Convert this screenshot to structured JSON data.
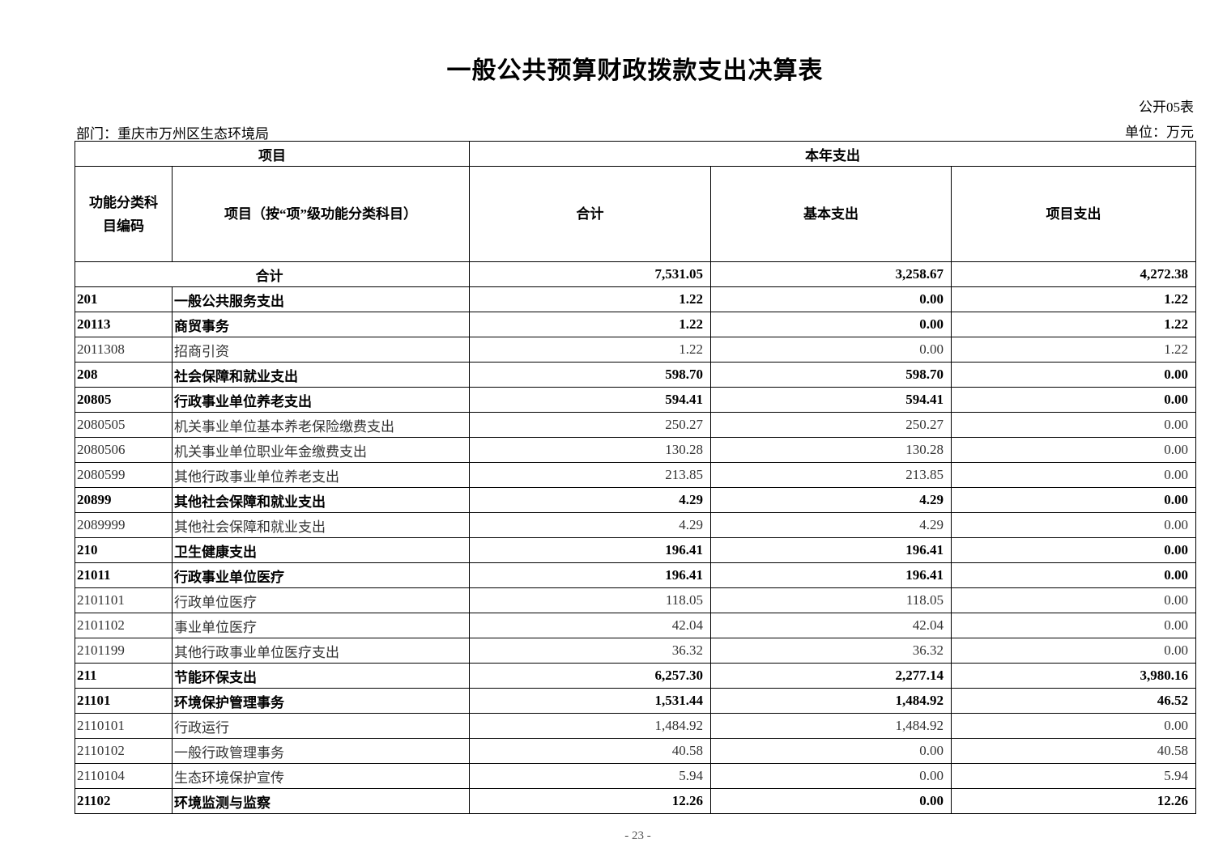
{
  "title": "一般公共预算财政拨款支出决算表",
  "table_no": "公开05表",
  "department": "部门：重庆市万州区生态环境局",
  "unit": "单位：万元",
  "headers": {
    "project": "项目",
    "current_year": "本年支出",
    "code": "功能分类科目编码",
    "name": "项目（按“项”级功能分类科目）",
    "total": "合计",
    "basic": "基本支出",
    "project_exp": "项目支出"
  },
  "total_row": {
    "label": "合计",
    "total": "7,531.05",
    "basic": "3,258.67",
    "project": "4,272.38"
  },
  "rows": [
    {
      "code": "201",
      "name": "一般公共服务支出",
      "total": "1.22",
      "basic": "0.00",
      "project": "1.22"
    },
    {
      "code": "20113",
      "name": "商贸事务",
      "total": "1.22",
      "basic": "0.00",
      "project": "1.22"
    },
    {
      "code": "2011308",
      "name": "招商引资",
      "total": "1.22",
      "basic": "0.00",
      "project": "1.22"
    },
    {
      "code": "208",
      "name": "社会保障和就业支出",
      "total": "598.70",
      "basic": "598.70",
      "project": "0.00"
    },
    {
      "code": "20805",
      "name": "行政事业单位养老支出",
      "total": "594.41",
      "basic": "594.41",
      "project": "0.00"
    },
    {
      "code": "2080505",
      "name": "机关事业单位基本养老保险缴费支出",
      "total": "250.27",
      "basic": "250.27",
      "project": "0.00"
    },
    {
      "code": "2080506",
      "name": "机关事业单位职业年金缴费支出",
      "total": "130.28",
      "basic": "130.28",
      "project": "0.00"
    },
    {
      "code": "2080599",
      "name": "其他行政事业单位养老支出",
      "total": "213.85",
      "basic": "213.85",
      "project": "0.00"
    },
    {
      "code": "20899",
      "name": "其他社会保障和就业支出",
      "total": "4.29",
      "basic": "4.29",
      "project": "0.00"
    },
    {
      "code": "2089999",
      "name": "其他社会保障和就业支出",
      "total": "4.29",
      "basic": "4.29",
      "project": "0.00"
    },
    {
      "code": "210",
      "name": "卫生健康支出",
      "total": "196.41",
      "basic": "196.41",
      "project": "0.00"
    },
    {
      "code": "21011",
      "name": "行政事业单位医疗",
      "total": "196.41",
      "basic": "196.41",
      "project": "0.00"
    },
    {
      "code": "2101101",
      "name": "行政单位医疗",
      "total": "118.05",
      "basic": "118.05",
      "project": "0.00"
    },
    {
      "code": "2101102",
      "name": "事业单位医疗",
      "total": "42.04",
      "basic": "42.04",
      "project": "0.00"
    },
    {
      "code": "2101199",
      "name": "其他行政事业单位医疗支出",
      "total": "36.32",
      "basic": "36.32",
      "project": "0.00"
    },
    {
      "code": "211",
      "name": "节能环保支出",
      "total": "6,257.30",
      "basic": "2,277.14",
      "project": "3,980.16"
    },
    {
      "code": "21101",
      "name": "环境保护管理事务",
      "total": "1,531.44",
      "basic": "1,484.92",
      "project": "46.52"
    },
    {
      "code": "2110101",
      "name": "行政运行",
      "total": "1,484.92",
      "basic": "1,484.92",
      "project": "0.00"
    },
    {
      "code": "2110102",
      "name": "一般行政管理事务",
      "total": "40.58",
      "basic": "0.00",
      "project": "40.58"
    },
    {
      "code": "2110104",
      "name": "生态环境保护宣传",
      "total": "5.94",
      "basic": "0.00",
      "project": "5.94"
    },
    {
      "code": "21102",
      "name": "环境监测与监察",
      "total": "12.26",
      "basic": "0.00",
      "project": "12.26"
    }
  ],
  "page_number": "- 23 -"
}
